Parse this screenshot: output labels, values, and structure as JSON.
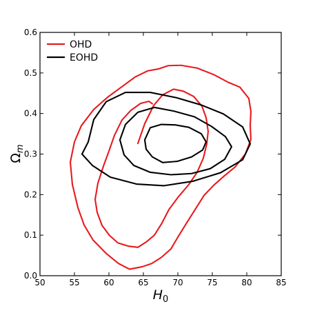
{
  "chart_data": {
    "type": "contour",
    "xlabel": "H",
    "xlabel_sub": "0",
    "ylabel": "Ω",
    "ylabel_sub": "m",
    "xlim": [
      50,
      85
    ],
    "ylim": [
      0.0,
      0.6
    ],
    "x_ticks": [
      50,
      55,
      60,
      65,
      70,
      75,
      80,
      85
    ],
    "y_ticks": [
      0.0,
      0.1,
      0.2,
      0.3,
      0.4,
      0.5,
      0.6
    ],
    "x_tick_labels": [
      "50",
      "55",
      "60",
      "65",
      "70",
      "75",
      "80",
      "85"
    ],
    "y_tick_labels": [
      "0.0",
      "0.1",
      "0.2",
      "0.3",
      "0.4",
      "0.5",
      "0.6"
    ],
    "grid": false,
    "legend_position": "top-left",
    "series": [
      {
        "name": "OHD",
        "color": "#e8191c",
        "contours": [
          [
            [
              64.2,
              0.326
            ],
            [
              65.2,
              0.375
            ],
            [
              66.5,
              0.42
            ],
            [
              67.8,
              0.446
            ],
            [
              69.4,
              0.46
            ],
            [
              70.8,
              0.455
            ],
            [
              72.3,
              0.442
            ],
            [
              73.5,
              0.418
            ],
            [
              74.1,
              0.39
            ],
            [
              74.4,
              0.356
            ],
            [
              74.2,
              0.325
            ],
            [
              73.7,
              0.29
            ],
            [
              72.8,
              0.255
            ],
            [
              71.6,
              0.225
            ],
            [
              70.1,
              0.195
            ],
            [
              68.7,
              0.163
            ],
            [
              67.7,
              0.13
            ],
            [
              66.6,
              0.1
            ],
            [
              65.4,
              0.083
            ],
            [
              64.2,
              0.07
            ],
            [
              62.8,
              0.073
            ],
            [
              61.3,
              0.081
            ],
            [
              60.1,
              0.099
            ],
            [
              59.0,
              0.124
            ],
            [
              58.3,
              0.156
            ],
            [
              58.0,
              0.188
            ],
            [
              58.4,
              0.228
            ],
            [
              59.2,
              0.27
            ],
            [
              60.0,
              0.307
            ],
            [
              60.8,
              0.346
            ],
            [
              61.9,
              0.384
            ],
            [
              63.2,
              0.408
            ],
            [
              64.6,
              0.425
            ],
            [
              65.8,
              0.43
            ],
            [
              66.3,
              0.424
            ]
          ],
          [
            [
              70.4,
              0.519
            ],
            [
              72.8,
              0.512
            ],
            [
              75.2,
              0.496
            ],
            [
              77.3,
              0.477
            ],
            [
              79.0,
              0.465
            ],
            [
              80.3,
              0.437
            ],
            [
              80.6,
              0.405
            ],
            [
              80.5,
              0.37
            ],
            [
              80.6,
              0.336
            ],
            [
              79.8,
              0.3
            ],
            [
              78.3,
              0.268
            ],
            [
              76.8,
              0.247
            ],
            [
              75.2,
              0.223
            ],
            [
              73.8,
              0.198
            ],
            [
              72.5,
              0.163
            ],
            [
              71.2,
              0.128
            ],
            [
              70.0,
              0.095
            ],
            [
              69.0,
              0.066
            ],
            [
              67.6,
              0.045
            ],
            [
              66.2,
              0.03
            ],
            [
              64.8,
              0.022
            ],
            [
              63.0,
              0.016
            ],
            [
              61.4,
              0.03
            ],
            [
              59.6,
              0.055
            ],
            [
              57.7,
              0.088
            ],
            [
              56.4,
              0.125
            ],
            [
              55.5,
              0.168
            ],
            [
              54.7,
              0.225
            ],
            [
              54.4,
              0.28
            ],
            [
              55.0,
              0.33
            ],
            [
              56.0,
              0.37
            ],
            [
              57.8,
              0.41
            ],
            [
              59.8,
              0.44
            ],
            [
              61.8,
              0.465
            ],
            [
              63.8,
              0.49
            ],
            [
              65.6,
              0.505
            ],
            [
              67.2,
              0.51
            ],
            [
              68.6,
              0.518
            ],
            [
              70.4,
              0.519
            ]
          ]
        ]
      },
      {
        "name": "EOHD",
        "color": "#000000",
        "contours": [
          [
            [
              65.2,
              0.335
            ],
            [
              66.0,
              0.365
            ],
            [
              67.6,
              0.373
            ],
            [
              69.6,
              0.372
            ],
            [
              71.6,
              0.366
            ],
            [
              73.4,
              0.35
            ],
            [
              74.1,
              0.33
            ],
            [
              73.6,
              0.31
            ],
            [
              72.0,
              0.293
            ],
            [
              69.9,
              0.282
            ],
            [
              67.8,
              0.279
            ],
            [
              66.3,
              0.293
            ],
            [
              65.4,
              0.312
            ],
            [
              65.2,
              0.335
            ]
          ],
          [
            [
              61.6,
              0.335
            ],
            [
              62.4,
              0.373
            ],
            [
              64.2,
              0.403
            ],
            [
              66.6,
              0.415
            ],
            [
              69.4,
              0.406
            ],
            [
              72.4,
              0.392
            ],
            [
              74.9,
              0.368
            ],
            [
              76.9,
              0.343
            ],
            [
              77.8,
              0.318
            ],
            [
              76.8,
              0.287
            ],
            [
              74.7,
              0.264
            ],
            [
              72.0,
              0.252
            ],
            [
              69.0,
              0.249
            ],
            [
              66.0,
              0.255
            ],
            [
              63.6,
              0.272
            ],
            [
              62.2,
              0.298
            ],
            [
              61.6,
              0.335
            ]
          ],
          [
            [
              57.0,
              0.33
            ],
            [
              57.8,
              0.385
            ],
            [
              59.6,
              0.429
            ],
            [
              62.4,
              0.452
            ],
            [
              66.0,
              0.452
            ],
            [
              69.8,
              0.439
            ],
            [
              73.4,
              0.421
            ],
            [
              76.6,
              0.399
            ],
            [
              79.4,
              0.367
            ],
            [
              80.5,
              0.325
            ],
            [
              79.4,
              0.286
            ],
            [
              76.2,
              0.254
            ],
            [
              72.2,
              0.233
            ],
            [
              68.0,
              0.222
            ],
            [
              64.0,
              0.226
            ],
            [
              60.2,
              0.243
            ],
            [
              57.6,
              0.272
            ],
            [
              56.1,
              0.3
            ],
            [
              57.0,
              0.33
            ]
          ]
        ]
      }
    ]
  }
}
